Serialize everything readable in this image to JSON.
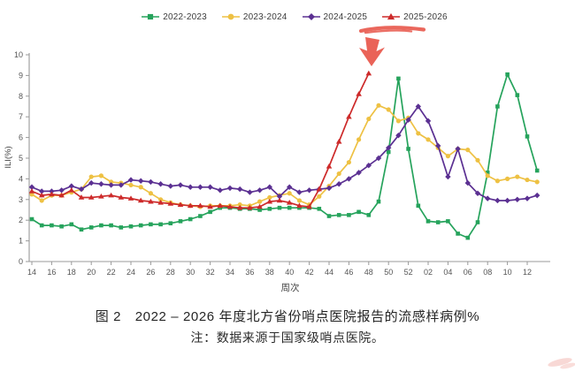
{
  "page": {
    "background": "#ffffff"
  },
  "legend": {
    "items": [
      {
        "label": "2022-2023",
        "color": "#26a35c",
        "marker": "square"
      },
      {
        "label": "2023-2024",
        "color": "#eec143",
        "marker": "circle"
      },
      {
        "label": "2024-2025",
        "color": "#5b3092",
        "marker": "diamond"
      },
      {
        "label": "2025-2026",
        "color": "#cd2a2a",
        "marker": "triangle"
      }
    ]
  },
  "chart_data": {
    "type": "line",
    "title": "图 2　2022 – 2026 年度北方省份哨点医院报告的流感样病例%",
    "xlabel": "周次",
    "ylabel": "ILI(%)",
    "ylim": [
      0,
      10
    ],
    "grid": false,
    "legend_position": "top",
    "y_ticks": [
      0,
      1,
      2,
      3,
      4,
      5,
      6,
      7,
      8,
      9,
      10
    ],
    "x_tick_labels": [
      "14",
      "16",
      "18",
      "20",
      "22",
      "24",
      "26",
      "28",
      "30",
      "32",
      "34",
      "36",
      "38",
      "40",
      "42",
      "44",
      "46",
      "48",
      "50",
      "52",
      "02",
      "04",
      "06",
      "08",
      "10",
      "12"
    ],
    "weeks": [
      "14",
      "15",
      "16",
      "17",
      "18",
      "19",
      "20",
      "21",
      "22",
      "23",
      "24",
      "25",
      "26",
      "27",
      "28",
      "29",
      "30",
      "31",
      "32",
      "33",
      "34",
      "35",
      "36",
      "37",
      "38",
      "39",
      "40",
      "41",
      "42",
      "43",
      "44",
      "45",
      "46",
      "47",
      "48",
      "49",
      "50",
      "51",
      "52",
      "01",
      "02",
      "03",
      "04",
      "05",
      "06",
      "07",
      "08",
      "09",
      "10",
      "11",
      "12",
      "13"
    ],
    "series": [
      {
        "name": "2022-2023",
        "color": "#26a35c",
        "marker": "square",
        "values": [
          2.05,
          1.75,
          1.75,
          1.7,
          1.8,
          1.55,
          1.65,
          1.75,
          1.75,
          1.65,
          1.7,
          1.75,
          1.8,
          1.8,
          1.85,
          1.95,
          2.05,
          2.2,
          2.4,
          2.6,
          2.6,
          2.55,
          2.55,
          2.5,
          2.55,
          2.6,
          2.6,
          2.6,
          2.6,
          2.55,
          2.2,
          2.25,
          2.25,
          2.4,
          2.25,
          2.9,
          5.3,
          8.85,
          5.45,
          2.7,
          1.95,
          1.9,
          1.95,
          1.35,
          1.15,
          1.9,
          4.3,
          7.5,
          9.05,
          8.05,
          6.05,
          4.4
        ]
      },
      {
        "name": "2023-2024",
        "color": "#eec143",
        "marker": "circle",
        "values": [
          3.25,
          2.95,
          3.2,
          3.2,
          3.35,
          3.5,
          4.1,
          4.15,
          3.85,
          3.8,
          3.7,
          3.6,
          3.3,
          3.0,
          2.85,
          2.75,
          2.7,
          2.65,
          2.7,
          2.7,
          2.7,
          2.75,
          2.7,
          2.9,
          3.1,
          3.2,
          3.3,
          2.95,
          2.75,
          3.15,
          3.65,
          4.25,
          4.8,
          5.9,
          6.9,
          7.55,
          7.35,
          6.8,
          6.95,
          6.2,
          5.9,
          5.5,
          5.1,
          5.45,
          5.4,
          4.9,
          4.15,
          3.9,
          4.0,
          4.1,
          3.95,
          3.85
        ]
      },
      {
        "name": "2024-2025",
        "color": "#5b3092",
        "marker": "diamond",
        "values": [
          3.6,
          3.4,
          3.4,
          3.45,
          3.65,
          3.5,
          3.8,
          3.75,
          3.7,
          3.7,
          3.95,
          3.9,
          3.85,
          3.75,
          3.65,
          3.7,
          3.6,
          3.6,
          3.6,
          3.45,
          3.55,
          3.5,
          3.35,
          3.45,
          3.6,
          3.15,
          3.6,
          3.35,
          3.45,
          3.5,
          3.55,
          3.75,
          4.0,
          4.3,
          4.65,
          5.0,
          5.5,
          6.1,
          6.85,
          7.5,
          6.8,
          5.6,
          4.1,
          5.45,
          3.8,
          3.3,
          3.05,
          2.95,
          2.95,
          3.0,
          3.05,
          3.2
        ]
      },
      {
        "name": "2025-2026",
        "color": "#cd2a2a",
        "marker": "triangle",
        "values": [
          3.4,
          3.2,
          3.25,
          3.2,
          3.45,
          3.1,
          3.1,
          3.15,
          3.2,
          3.1,
          3.05,
          2.95,
          2.9,
          2.85,
          2.8,
          2.75,
          2.7,
          2.7,
          2.65,
          2.7,
          2.65,
          2.6,
          2.6,
          2.65,
          2.9,
          2.95,
          2.85,
          2.7,
          2.65,
          3.5,
          4.6,
          5.8,
          7.0,
          8.1,
          9.1
        ]
      }
    ]
  },
  "annotations": {
    "underline_color": "#e8564a",
    "arrow_color": "#e8564a",
    "smudge_color": "#efa9a2",
    "target_series": "2025-2026"
  },
  "caption": {
    "line1": "图 2　2022 – 2026 年度北方省份哨点医院报告的流感样病例%",
    "line2": "注：数据来源于国家级哨点医院。"
  },
  "axis_style": {
    "line_color": "#999999",
    "tick_text_color": "#555555",
    "label_color": "#444444"
  }
}
